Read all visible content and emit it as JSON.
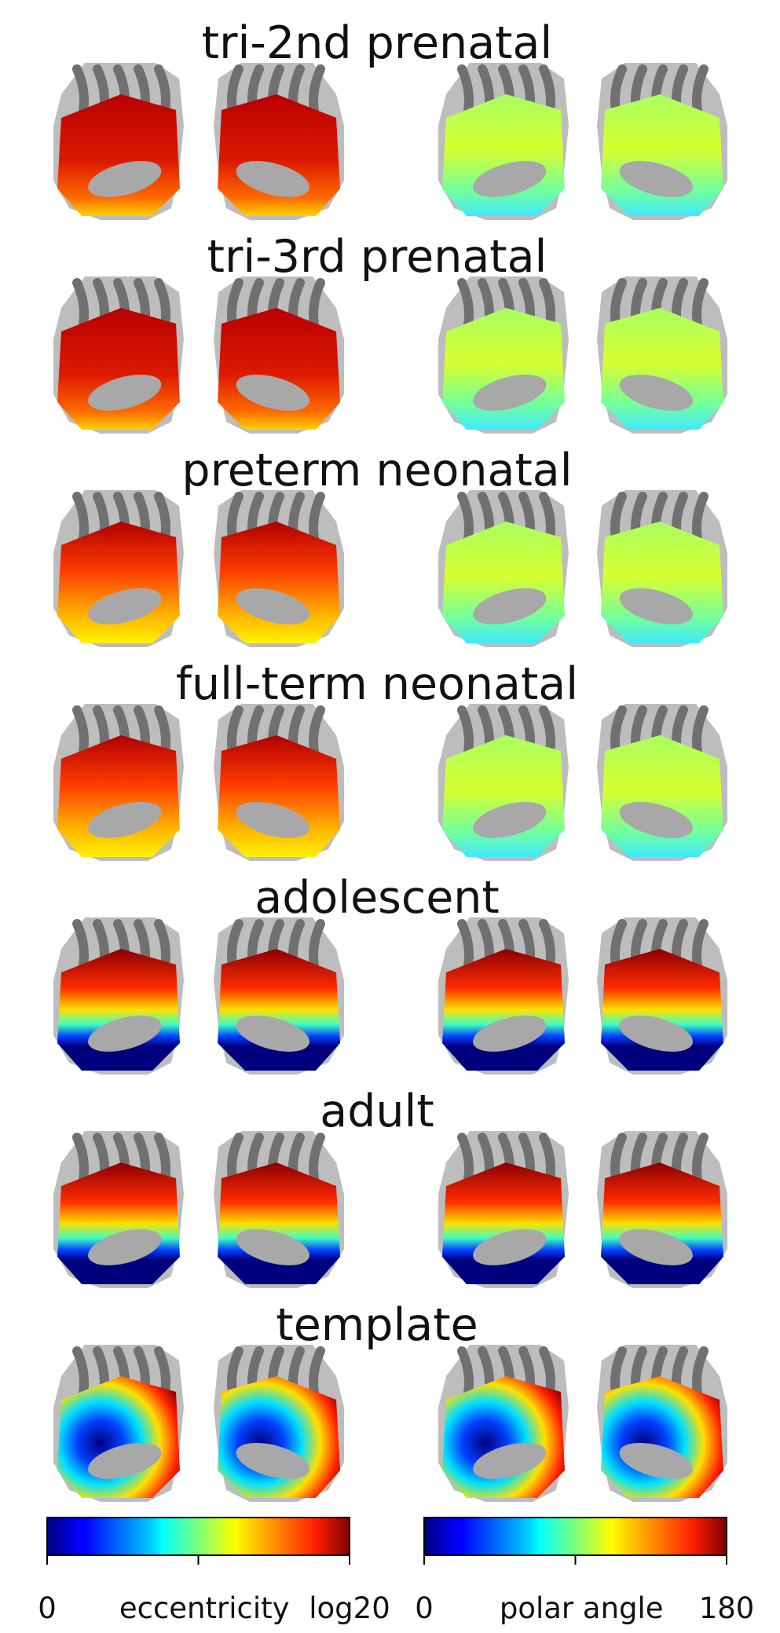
{
  "rows": [
    {
      "title": "tri-2nd prenatal",
      "ecc_style": "hot",
      "pol_style": "flat"
    },
    {
      "title": "tri-3rd prenatal",
      "ecc_style": "hot",
      "pol_style": "flat"
    },
    {
      "title": "preterm neonatal",
      "ecc_style": "warm",
      "pol_style": "flat"
    },
    {
      "title": "full-term neonatal",
      "ecc_style": "warm",
      "pol_style": "flat"
    },
    {
      "title": "adolescent",
      "ecc_style": "banded",
      "pol_style": "banded"
    },
    {
      "title": "adult",
      "ecc_style": "banded",
      "pol_style": "banded"
    },
    {
      "title": "template",
      "ecc_style": "template",
      "pol_style": "template"
    }
  ],
  "colorbars": [
    {
      "colormap": "jet",
      "ticks": [
        "0",
        "",
        "log20"
      ],
      "label": "eccentricity"
    },
    {
      "colormap": "jet",
      "ticks": [
        "0",
        "",
        "180"
      ],
      "label": "polar angle"
    }
  ],
  "colors": {
    "sulcal_light": "#bdbdbd",
    "sulcal_dark": "#707070",
    "medial_wall": "#a8a8a8"
  }
}
